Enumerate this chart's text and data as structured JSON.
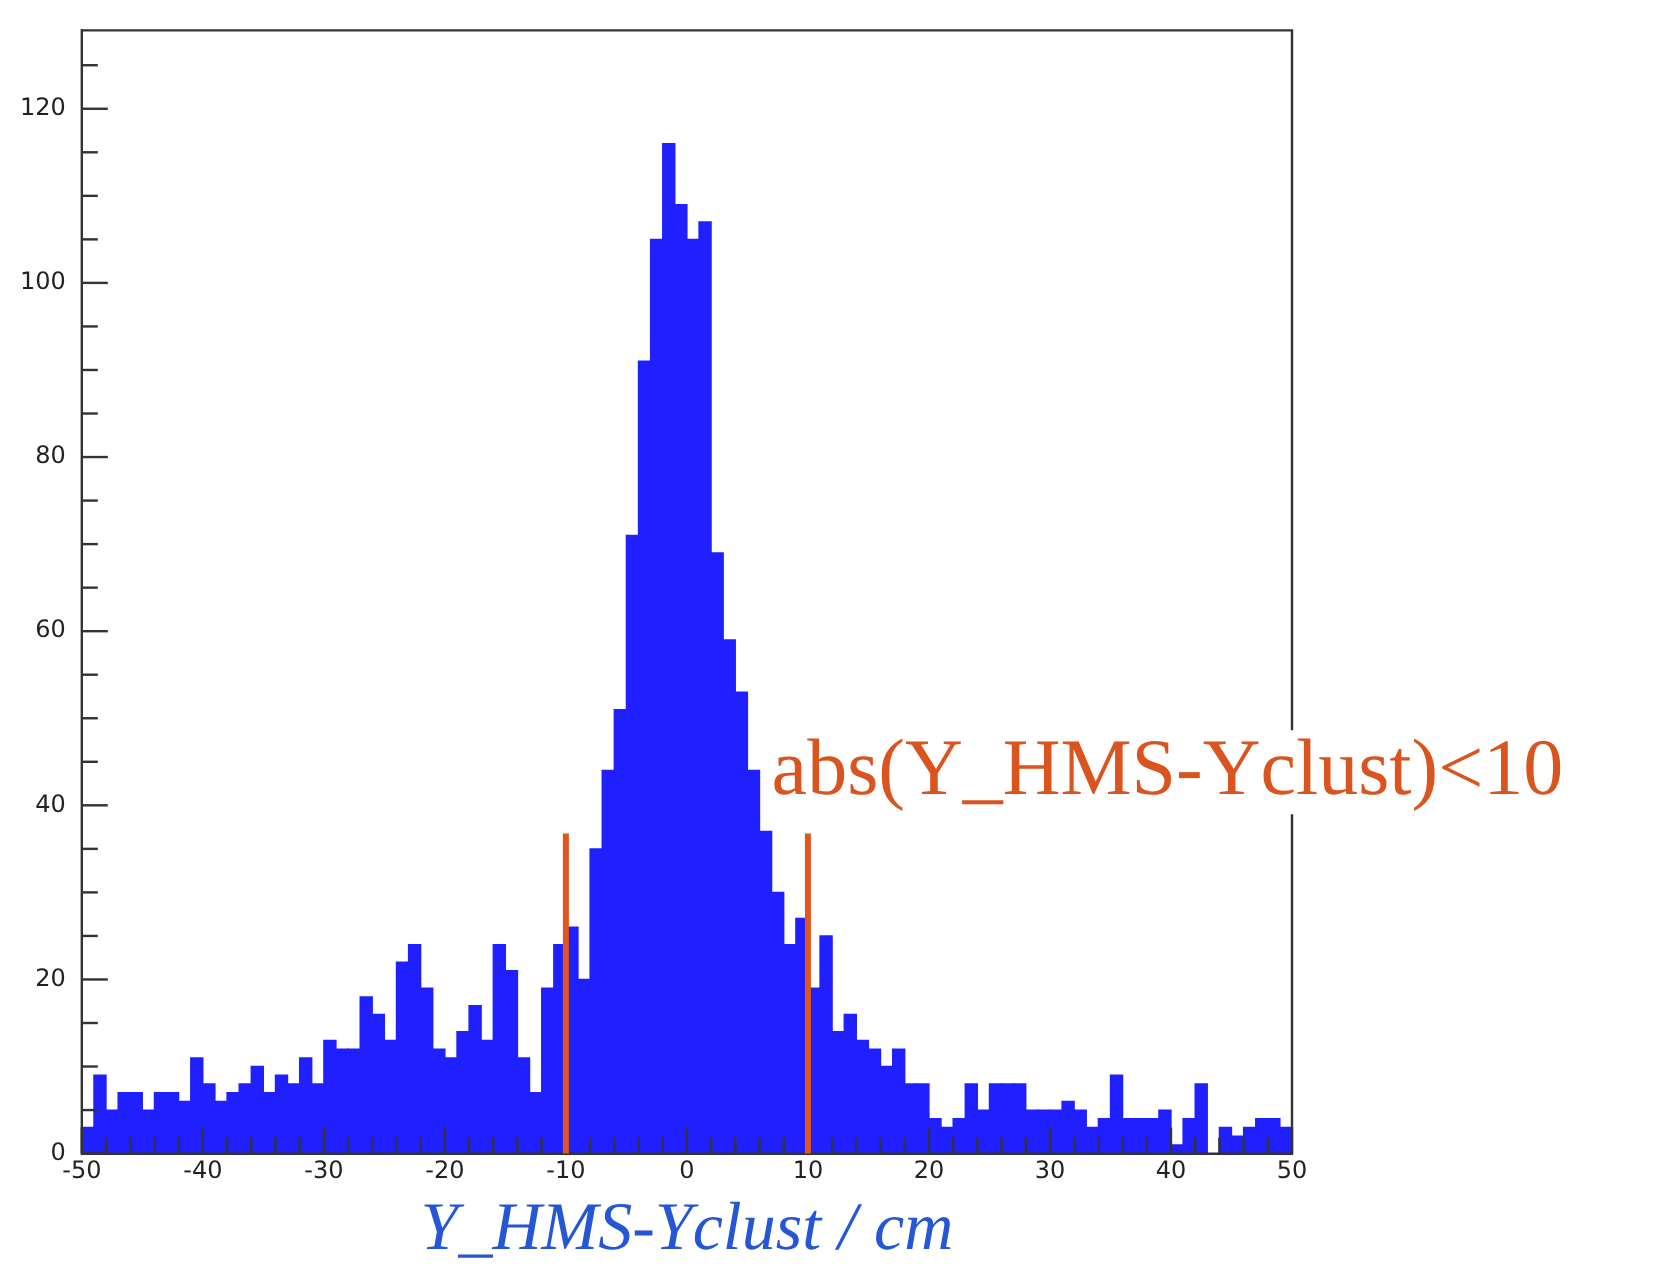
{
  "chart_data": {
    "type": "histogram",
    "xlabel": "Y_HMS-Yclust / cm",
    "color": "#2020ff",
    "bins": [
      -50,
      -49,
      -48,
      -47,
      -46,
      -45,
      -44,
      -43,
      -42,
      -41,
      -40,
      -39,
      -38,
      -37,
      -36,
      -35,
      -34,
      -33,
      -32,
      -31,
      -30,
      -29,
      -28,
      -27,
      -26,
      -25,
      -24,
      -23,
      -22,
      -21,
      -20,
      -19,
      -18,
      -17,
      -16,
      -15,
      -14,
      -13,
      -12,
      -11,
      -10,
      -9,
      -8,
      -7,
      -6,
      -5,
      -4,
      -3,
      -2,
      -1,
      0,
      1,
      2,
      3,
      4,
      5,
      6,
      7,
      8,
      9,
      10,
      11,
      12,
      13,
      14,
      15,
      16,
      17,
      18,
      19,
      20,
      21,
      22,
      23,
      24,
      25,
      26,
      27,
      28,
      29,
      30,
      31,
      32,
      33,
      34,
      35,
      36,
      37,
      38,
      39,
      40,
      41,
      42,
      43,
      44,
      45,
      46,
      47,
      48,
      49,
      50
    ],
    "values": [
      3,
      9,
      5,
      7,
      7,
      5,
      7,
      7,
      6,
      11,
      8,
      6,
      7,
      8,
      10,
      7,
      9,
      8,
      11,
      8,
      13,
      12,
      12,
      18,
      16,
      13,
      22,
      24,
      19,
      12,
      11,
      14,
      17,
      13,
      24,
      21,
      11,
      7,
      19,
      24,
      26,
      20,
      35,
      44,
      51,
      71,
      91,
      105,
      116,
      109,
      105,
      107,
      69,
      59,
      53,
      44,
      37,
      30,
      24,
      27,
      19,
      25,
      14,
      16,
      13,
      12,
      10,
      12,
      8,
      8,
      4,
      3,
      4,
      8,
      5,
      8,
      8,
      8,
      5,
      5,
      5,
      6,
      5,
      3,
      4,
      9,
      4,
      4,
      4,
      5,
      1,
      4,
      8,
      0,
      3,
      2,
      3,
      4,
      4,
      3
    ],
    "xlim": [
      -50,
      50
    ],
    "xticks": [
      -50,
      {
        "value": -48,
        "label": null
      },
      {
        "value": -46,
        "label": null
      },
      {
        "value": -44,
        "label": null
      },
      {
        "value": -42,
        "label": null
      },
      -40,
      {
        "value": -38,
        "label": null
      },
      {
        "value": -36,
        "label": null
      },
      {
        "value": -34,
        "label": null
      },
      {
        "value": -32,
        "label": null
      },
      -30,
      {
        "value": -28,
        "label": null
      },
      {
        "value": -26,
        "label": null
      },
      {
        "value": -24,
        "label": null
      },
      {
        "value": -22,
        "label": null
      },
      -20,
      {
        "value": -18,
        "label": null
      },
      {
        "value": -16,
        "label": null
      },
      {
        "value": -14,
        "label": null
      },
      {
        "value": -12,
        "label": null
      },
      -10,
      {
        "value": -8,
        "label": null
      },
      {
        "value": -6,
        "label": null
      },
      {
        "value": -4,
        "label": null
      },
      {
        "value": -2,
        "label": null
      },
      0,
      {
        "value": 2,
        "label": null
      },
      {
        "value": 4,
        "label": null
      },
      {
        "value": 6,
        "label": null
      },
      {
        "value": 8,
        "label": null
      },
      10,
      {
        "value": 12,
        "label": null
      },
      {
        "value": 14,
        "label": null
      },
      {
        "value": 16,
        "label": null
      },
      {
        "value": 18,
        "label": null
      },
      20,
      {
        "value": 22,
        "label": null
      },
      {
        "value": 24,
        "label": null
      },
      {
        "value": 26,
        "label": null
      },
      {
        "value": 28,
        "label": null
      },
      30,
      {
        "value": 32,
        "label": null
      },
      {
        "value": 34,
        "label": null
      },
      {
        "value": 36,
        "label": null
      },
      {
        "value": 38,
        "label": null
      },
      40,
      {
        "value": 42,
        "label": null
      },
      {
        "value": 44,
        "label": null
      },
      {
        "value": 46,
        "label": null
      },
      {
        "value": 48,
        "label": null
      },
      50
    ],
    "ylim": [
      0,
      129
    ],
    "yticks": [
      0,
      {
        "value": 5,
        "label": null
      },
      {
        "value": 10,
        "label": null
      },
      {
        "value": 15,
        "label": null
      },
      20,
      {
        "value": 25,
        "label": null
      },
      {
        "value": 30,
        "label": null
      },
      {
        "value": 35,
        "label": null
      },
      40,
      {
        "value": 45,
        "label": null
      },
      {
        "value": 50,
        "label": null
      },
      {
        "value": 55,
        "label": null
      },
      60,
      {
        "value": 65,
        "label": null
      },
      {
        "value": 70,
        "label": null
      },
      {
        "value": 75,
        "label": null
      },
      80,
      {
        "value": 85,
        "label": null
      },
      {
        "value": 90,
        "label": null
      },
      {
        "value": 95,
        "label": null
      },
      100,
      {
        "value": 105,
        "label": null
      },
      {
        "value": 110,
        "label": null
      },
      {
        "value": 115,
        "label": null
      },
      120,
      {
        "value": 125,
        "label": null
      }
    ],
    "ref_lines": [
      {
        "axis": "x",
        "value": -10,
        "color": "#e0561e"
      },
      {
        "axis": "x",
        "value": 10,
        "color": "#e0561e"
      }
    ],
    "annotations": [
      "abs(Y_HMS-Yclust)<10"
    ],
    "legend": false
  }
}
